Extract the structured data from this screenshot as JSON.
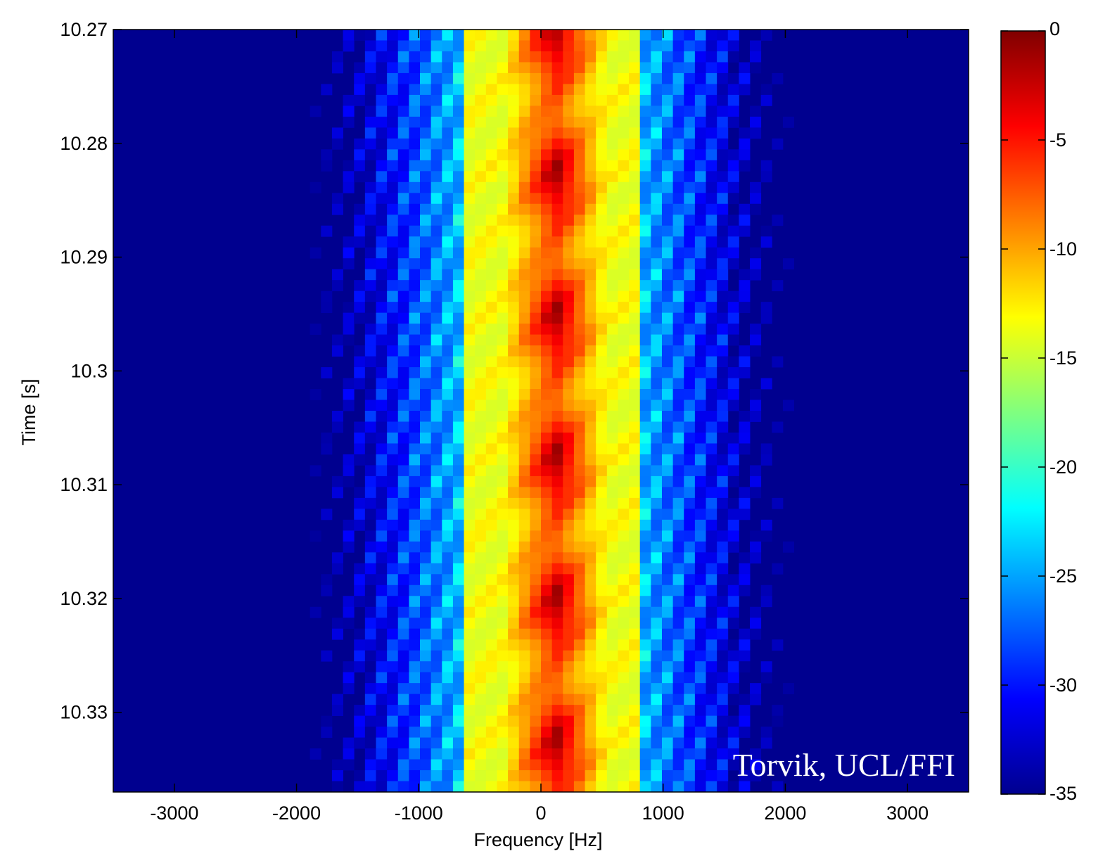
{
  "chart_data": {
    "type": "heatmap",
    "title": "",
    "xlabel": "Frequency [Hz]",
    "ylabel": "Time [s]",
    "xlim": [
      -3500,
      3500
    ],
    "ylim": [
      10.27,
      10.337
    ],
    "y_reversed": true,
    "xticks": [
      -3000,
      -2000,
      -1000,
      0,
      1000,
      2000,
      3000
    ],
    "xtick_labels": [
      "-3000",
      "-2000",
      "-1000",
      "0",
      "1000",
      "2000",
      "3000"
    ],
    "yticks": [
      10.27,
      10.28,
      10.29,
      10.3,
      10.31,
      10.32,
      10.33
    ],
    "ytick_labels": [
      "10.27",
      "10.28",
      "10.29",
      "10.3",
      "10.31",
      "10.32",
      "10.33"
    ],
    "colorbar": {
      "colormap": "jet",
      "range": [
        -35,
        0
      ],
      "ticks": [
        0,
        -5,
        -10,
        -15,
        -20,
        -25,
        -30,
        -35
      ],
      "tick_labels": [
        "0",
        "-5",
        "-10",
        "-15",
        "-20",
        "-25",
        "-30",
        "-35"
      ]
    },
    "grid": false,
    "x_bin_hz": 90,
    "rows": 70,
    "levels_db": {
      "center_peak": 0,
      "inner_band_edge": -12,
      "side_lobes": -20,
      "outer_skirt": -29,
      "background": -35
    },
    "features": {
      "main_band_hz": [
        -650,
        800
      ],
      "side_lobe_extent_hz": [
        -2300,
        2500
      ],
      "modulation_period_s": 0.0125
    },
    "watermark": "Torvik, UCL/FFI"
  }
}
